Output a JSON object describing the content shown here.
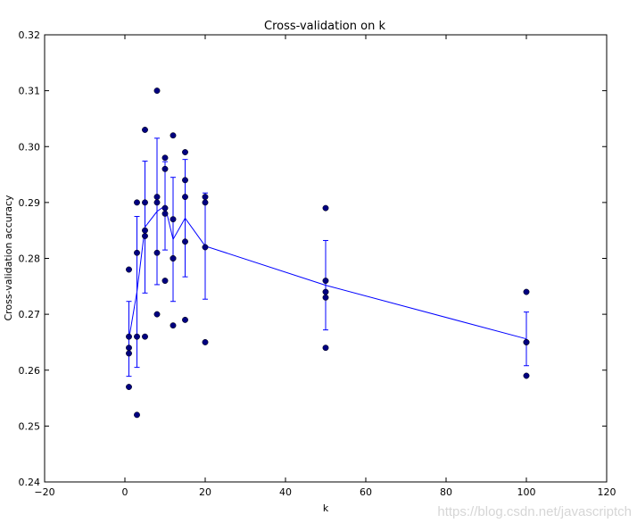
{
  "chart_data": {
    "type": "scatter",
    "title": "Cross-validation on k",
    "xlabel": "k",
    "ylabel": "Cross-validation accuracy",
    "xlim": [
      -20,
      120
    ],
    "ylim": [
      0.24,
      0.32
    ],
    "xticks": [
      -20,
      0,
      20,
      40,
      60,
      80,
      100,
      120
    ],
    "xtick_labels": [
      "−20",
      "0",
      "20",
      "40",
      "60",
      "80",
      "100",
      "120"
    ],
    "yticks": [
      0.24,
      0.25,
      0.26,
      0.27,
      0.28,
      0.29,
      0.3,
      0.31,
      0.32
    ],
    "ytick_labels": [
      "0.24",
      "0.25",
      "0.26",
      "0.27",
      "0.28",
      "0.29",
      "0.30",
      "0.31",
      "0.32"
    ],
    "grid": false,
    "series": [
      {
        "kind": "scatter",
        "color": "#000080",
        "points": [
          [
            1,
            0.278
          ],
          [
            1,
            0.266
          ],
          [
            1,
            0.264
          ],
          [
            1,
            0.263
          ],
          [
            1,
            0.257
          ],
          [
            3,
            0.29
          ],
          [
            3,
            0.281
          ],
          [
            3,
            0.266
          ],
          [
            3,
            0.252
          ],
          [
            5,
            0.303
          ],
          [
            5,
            0.29
          ],
          [
            5,
            0.285
          ],
          [
            5,
            0.284
          ],
          [
            5,
            0.266
          ],
          [
            8,
            0.31
          ],
          [
            8,
            0.291
          ],
          [
            8,
            0.29
          ],
          [
            8,
            0.281
          ],
          [
            8,
            0.27
          ],
          [
            10,
            0.298
          ],
          [
            10,
            0.296
          ],
          [
            10,
            0.289
          ],
          [
            10,
            0.288
          ],
          [
            10,
            0.276
          ],
          [
            12,
            0.302
          ],
          [
            12,
            0.287
          ],
          [
            12,
            0.28
          ],
          [
            12,
            0.28
          ],
          [
            12,
            0.268
          ],
          [
            15,
            0.299
          ],
          [
            15,
            0.294
          ],
          [
            15,
            0.291
          ],
          [
            15,
            0.283
          ],
          [
            15,
            0.269
          ],
          [
            20,
            0.291
          ],
          [
            20,
            0.29
          ],
          [
            20,
            0.282
          ],
          [
            20,
            0.265
          ],
          [
            50,
            0.289
          ],
          [
            50,
            0.276
          ],
          [
            50,
            0.274
          ],
          [
            50,
            0.273
          ],
          [
            50,
            0.264
          ],
          [
            100,
            0.274
          ],
          [
            100,
            0.265
          ],
          [
            100,
            0.265
          ],
          [
            100,
            0.259
          ]
        ]
      },
      {
        "kind": "errorbar",
        "color": "#0000ff",
        "x": [
          1,
          3,
          5,
          8,
          10,
          12,
          15,
          20,
          50,
          100
        ],
        "mean": [
          0.2656,
          0.274,
          0.2856,
          0.2884,
          0.2894,
          0.2834,
          0.2872,
          0.2822,
          0.2752,
          0.2656
        ],
        "std": [
          0.0067,
          0.0135,
          0.0118,
          0.0131,
          0.0079,
          0.0111,
          0.0105,
          0.0095,
          0.008,
          0.0048
        ]
      }
    ]
  },
  "watermark": "https://blog.csdn.net/javascriptch"
}
